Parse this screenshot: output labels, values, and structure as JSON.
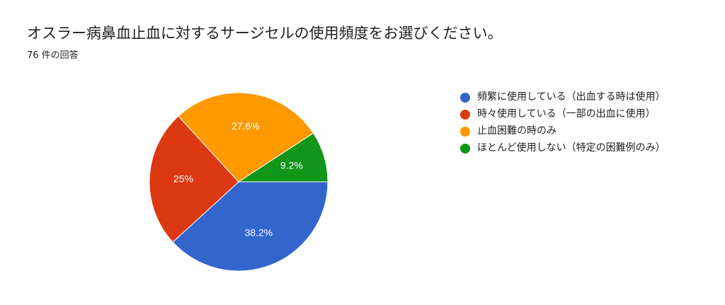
{
  "title": "オスラー病鼻血止血に対するサージセルの使用頻度をお選びください。",
  "response_count": "76 件の回答",
  "chart_data": {
    "type": "pie",
    "title": "オスラー病鼻血止血に対するサージセルの使用頻度をお選びください。",
    "slices": [
      {
        "name": "頻繁に使用している（出血する時は使用）",
        "value": 38.2,
        "label": "38.2%",
        "color": "#3366cc"
      },
      {
        "name": "時々使用している（一部の出血に使用）",
        "value": 25,
        "label": "25%",
        "color": "#dc3912"
      },
      {
        "name": "止血困難の時のみ",
        "value": 27.6,
        "label": "27.6%",
        "color": "#ff9900"
      },
      {
        "name": "ほとんど使用しない（特定の困難例のみ）",
        "value": 9.2,
        "label": "9.2%",
        "color": "#109618"
      }
    ],
    "legend_position": "right"
  },
  "legend": [
    {
      "label": "頻繁に使用している（出血する時は使用）",
      "color": "#3366cc"
    },
    {
      "label": "時々使用している（一部の出血に使用）",
      "color": "#dc3912"
    },
    {
      "label": "止血困難の時のみ",
      "color": "#ff9900"
    },
    {
      "label": "ほとんど使用しない（特定の困難例のみ）",
      "color": "#109618"
    }
  ]
}
